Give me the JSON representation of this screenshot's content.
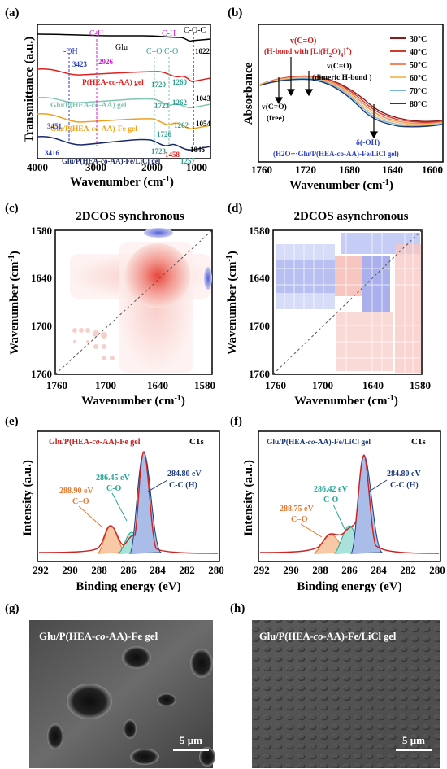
{
  "figure": {
    "panels": {
      "a": {
        "letter": "(a)",
        "xlabel": "Wavenumber (cm-1)",
        "ylabel": "Transmittance (a.u.)",
        "xticks": [
          "4000",
          "3000",
          "2000",
          "1000"
        ],
        "labels": {
          "oh": "-OH",
          "ch1": "C-H",
          "ch2": "C-H",
          "coc": "C-O-C",
          "co1": "C=O",
          "co2": "C-O",
          "glu": "Glu",
          "s2": "P(HEA-co-AA) gel",
          "s3": "Glu/P(HEA-co-AA) gel",
          "s4": "Glu/P(HEA-co-AA)-Fe gel",
          "s5": "Glu/P(HEA-co-AA)-Fe/LiCl gel",
          "n3423": "3423",
          "n2926": "2926",
          "n1022": "1022",
          "n1720": "1720",
          "n1260": "1260",
          "n1723": "1723",
          "n1262a": "1262",
          "n1043": "1043",
          "n3451": "3451",
          "n1726": "1726",
          "n1262b": "1262",
          "n1054": "1054",
          "n3416": "3416",
          "n1723b": "1723",
          "n1458": "1458",
          "n1046": "1046",
          "n1257": "1257"
        }
      },
      "b": {
        "letter": "(b)",
        "xlabel": "Wavenumber (cm-1)",
        "ylabel": "Absorbance",
        "xticks": [
          "1760",
          "1720",
          "1680",
          "1640",
          "1600"
        ],
        "legend": [
          "30°C",
          "40°C",
          "50°C",
          "60°C",
          "70°C",
          "80°C"
        ],
        "legend_colors": [
          "#8b1a1a",
          "#d23c2c",
          "#f08a5a",
          "#f5c06a",
          "#7ab8e0",
          "#1f3a6e"
        ],
        "ann1": "v(C=O)",
        "ann1b": "(H-bond with [Li(H2O)4]+)",
        "ann2": "v(C=O)",
        "ann2b": "(dimeric H-bond )",
        "ann3": "v(C=O)",
        "ann3b": "(free)",
        "ann4": "δ(-OH)",
        "ann4b": "(H2O···Glu/P(HEA-co-AA)-Fe/LiCl gel)"
      },
      "c": {
        "letter": "(c)",
        "title": "2DCOS synchronous",
        "xlabel": "Wavenumber (cm-1)",
        "ylabel": "Wavenumber (cm-1)",
        "ticks": [
          "1760",
          "1700",
          "1640",
          "1580"
        ]
      },
      "d": {
        "letter": "(d)",
        "title": "2DCOS asynchronous",
        "xlabel": "Wavenumber (cm-1)",
        "ylabel": "Wavenumber (cm-1)",
        "ticks": [
          "1760",
          "1700",
          "1640",
          "1580"
        ]
      },
      "e": {
        "letter": "(e)",
        "sample": "Glu/P(HEA-co-AA)-Fe gel",
        "tag": "C1s",
        "xlabel": "Binding energy (eV)",
        "ylabel": "Intensity (a.u.)",
        "xticks": [
          "292",
          "290",
          "288",
          "286",
          "284",
          "282",
          "280"
        ],
        "p1": "288.90 eV",
        "p1b": "C=O",
        "p2": "286.45 eV",
        "p2b": "C-O",
        "p3": "284.80 eV",
        "p3b": "C-C (H)"
      },
      "f": {
        "letter": "(f)",
        "sample": "Glu/P(HEA-co-AA)-Fe/LiCl gel",
        "tag": "C1s",
        "xlabel": "Binding energy (eV)",
        "ylabel": "Intensity (a.u.)",
        "xticks": [
          "292",
          "290",
          "288",
          "286",
          "284",
          "282",
          "280"
        ],
        "p1": "288.75 eV",
        "p1b": "C=O",
        "p2": "286.42 eV",
        "p2b": "C-O",
        "p3": "284.80 eV",
        "p3b": "C-C (H)"
      },
      "g": {
        "letter": "(g)",
        "caption": "Glu/P(HEA-co-AA)-Fe gel",
        "scale": "5 μm"
      },
      "h": {
        "letter": "(h)",
        "caption": "Glu/P(HEA-co-AA)-Fe/LiCl gel",
        "scale": "5 μm"
      }
    }
  }
}
